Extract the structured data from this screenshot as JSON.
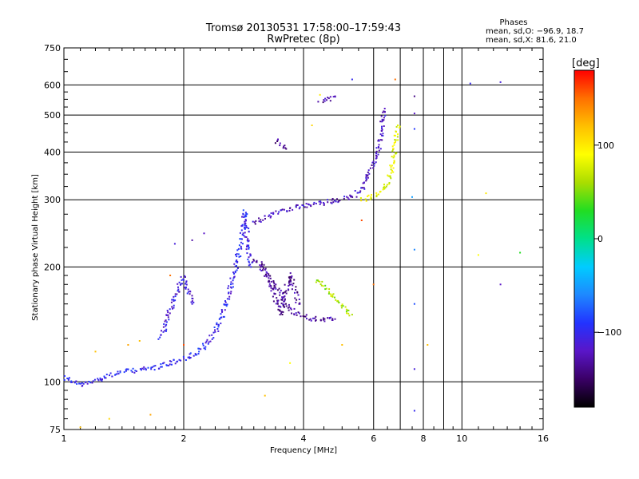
{
  "title_line1": "Tromsø 20130531 17:58:00–17:59:43",
  "title_line2": "RwPretec (8p)",
  "stats": {
    "header": "Phases",
    "line_o": "mean, sd,O: −96.9, 18.7",
    "line_x": "mean, sd,X:  81.6, 21.0"
  },
  "colorbar": {
    "title": "[deg]",
    "ticks": [
      {
        "value": 100,
        "label": "100"
      },
      {
        "value": 0,
        "label": "0"
      },
      {
        "value": -100,
        "label": "−100"
      }
    ],
    "range": [
      -180,
      180
    ],
    "colors": [
      "#000000",
      "#3a0066",
      "#5a16c8",
      "#2233ff",
      "#1e88ff",
      "#00ccff",
      "#00e08a",
      "#22dd22",
      "#aadd00",
      "#ffff00",
      "#ffc000",
      "#ff7000",
      "#ff0000"
    ]
  },
  "chart_data": {
    "type": "scatter",
    "xlabel": "Frequency [MHz]",
    "ylabel": "Stationary phase Virtual Height [km]",
    "xscale": "log",
    "yscale": "log",
    "xlim": [
      1,
      16
    ],
    "ylim": [
      75,
      750
    ],
    "xticks": [
      {
        "value": 1,
        "label": "1"
      },
      {
        "value": 2,
        "label": "2"
      },
      {
        "value": 4,
        "label": "4"
      },
      {
        "value": 6,
        "label": "6"
      },
      {
        "value": 8,
        "label": "8"
      },
      {
        "value": 10,
        "label": "10"
      },
      {
        "value": 16,
        "label": "16"
      }
    ],
    "xgrid": [
      2,
      4,
      6,
      7,
      8,
      9,
      10
    ],
    "yticks": [
      {
        "value": 75,
        "label": "75"
      },
      {
        "value": 100,
        "label": "100"
      },
      {
        "value": 200,
        "label": "200"
      },
      {
        "value": 300,
        "label": "300"
      },
      {
        "value": 400,
        "label": "400"
      },
      {
        "value": 500,
        "label": "500"
      },
      {
        "value": 600,
        "label": "600"
      },
      {
        "value": 750,
        "label": "750"
      }
    ],
    "ygrid": [
      100,
      200,
      300,
      400,
      500,
      600
    ],
    "grid": true,
    "traces": [
      {
        "phase": -100,
        "points": [
          [
            1.0,
            103
          ],
          [
            1.05,
            100
          ],
          [
            1.1,
            98
          ],
          [
            1.15,
            99
          ],
          [
            1.2,
            101
          ],
          [
            1.3,
            104
          ],
          [
            1.4,
            106
          ],
          [
            1.5,
            107
          ],
          [
            1.6,
            108
          ],
          [
            1.7,
            109
          ],
          [
            1.8,
            111
          ],
          [
            1.9,
            113
          ],
          [
            2.0,
            115
          ],
          [
            2.1,
            117
          ],
          [
            2.2,
            121
          ],
          [
            2.3,
            126
          ],
          [
            2.4,
            135
          ],
          [
            2.5,
            150
          ],
          [
            2.6,
            170
          ],
          [
            2.7,
            200
          ],
          [
            2.8,
            240
          ],
          [
            2.85,
            280
          ],
          [
            2.9,
            230
          ],
          [
            2.95,
            200
          ]
        ]
      },
      {
        "phase": -110,
        "points": [
          [
            1.75,
            130
          ],
          [
            1.8,
            140
          ],
          [
            1.85,
            155
          ],
          [
            1.9,
            168
          ],
          [
            1.95,
            178
          ],
          [
            2.0,
            188
          ],
          [
            2.05,
            175
          ],
          [
            2.1,
            160
          ]
        ]
      },
      {
        "phase": -120,
        "points": [
          [
            3.0,
            260
          ],
          [
            3.2,
            270
          ],
          [
            3.4,
            278
          ],
          [
            3.6,
            283
          ],
          [
            3.8,
            286
          ],
          [
            4.0,
            288
          ],
          [
            4.3,
            292
          ],
          [
            4.6,
            296
          ],
          [
            5.0,
            300
          ],
          [
            5.3,
            305
          ],
          [
            5.6,
            320
          ],
          [
            5.8,
            345
          ],
          [
            6.0,
            375
          ],
          [
            6.2,
            415
          ],
          [
            6.3,
            460
          ],
          [
            6.4,
            520
          ]
        ]
      },
      {
        "phase": -130,
        "points": [
          [
            3.1,
            200
          ],
          [
            3.3,
            185
          ],
          [
            3.5,
            170
          ],
          [
            3.6,
            160
          ],
          [
            3.8,
            152
          ],
          [
            4.0,
            148
          ],
          [
            4.3,
            146
          ],
          [
            4.6,
            145
          ],
          [
            4.8,
            146
          ]
        ]
      },
      {
        "phase": -135,
        "points": [
          [
            3.0,
            210
          ],
          [
            3.2,
            200
          ],
          [
            3.3,
            180
          ],
          [
            3.4,
            165
          ],
          [
            3.5,
            150
          ],
          [
            3.6,
            170
          ],
          [
            3.7,
            190
          ],
          [
            3.8,
            175
          ],
          [
            3.9,
            160
          ]
        ]
      },
      {
        "phase": 60,
        "points": [
          [
            4.3,
            185
          ],
          [
            4.5,
            178
          ],
          [
            4.7,
            170
          ],
          [
            4.9,
            162
          ],
          [
            5.1,
            155
          ],
          [
            5.3,
            150
          ]
        ]
      },
      {
        "phase": 80,
        "points": [
          [
            5.6,
            300
          ],
          [
            5.9,
            305
          ],
          [
            6.2,
            312
          ],
          [
            6.5,
            330
          ],
          [
            6.7,
            370
          ],
          [
            6.8,
            420
          ],
          [
            6.9,
            470
          ]
        ]
      },
      {
        "phase": -130,
        "points": [
          [
            4.4,
            540
          ],
          [
            4.6,
            550
          ],
          [
            4.8,
            560
          ]
        ]
      },
      {
        "phase": -140,
        "points": [
          [
            3.4,
            430
          ],
          [
            3.5,
            420
          ],
          [
            3.6,
            410
          ]
        ]
      }
    ],
    "scatter_points": [
      {
        "x": 5.3,
        "y": 620,
        "phase": -100
      },
      {
        "x": 6.8,
        "y": 620,
        "phase": 150
      },
      {
        "x": 10.5,
        "y": 605,
        "phase": -100
      },
      {
        "x": 12.5,
        "y": 610,
        "phase": -110
      },
      {
        "x": 7.6,
        "y": 560,
        "phase": -140
      },
      {
        "x": 7.6,
        "y": 505,
        "phase": -120
      },
      {
        "x": 7.6,
        "y": 460,
        "phase": -90
      },
      {
        "x": 4.4,
        "y": 565,
        "phase": 100
      },
      {
        "x": 7.5,
        "y": 305,
        "phase": -50
      },
      {
        "x": 7.6,
        "y": 222,
        "phase": -60
      },
      {
        "x": 7.6,
        "y": 160,
        "phase": -80
      },
      {
        "x": 7.6,
        "y": 108,
        "phase": -110
      },
      {
        "x": 7.6,
        "y": 84,
        "phase": -100
      },
      {
        "x": 11.5,
        "y": 312,
        "phase": 100
      },
      {
        "x": 11.0,
        "y": 215,
        "phase": 90
      },
      {
        "x": 14.0,
        "y": 218,
        "phase": 30
      },
      {
        "x": 12.5,
        "y": 180,
        "phase": -120
      },
      {
        "x": 1.9,
        "y": 230,
        "phase": -110
      },
      {
        "x": 2.1,
        "y": 235,
        "phase": -130
      },
      {
        "x": 2.25,
        "y": 245,
        "phase": -120
      },
      {
        "x": 1.85,
        "y": 190,
        "phase": 150
      },
      {
        "x": 1.55,
        "y": 128,
        "phase": 120
      },
      {
        "x": 1.45,
        "y": 125,
        "phase": 130
      },
      {
        "x": 1.2,
        "y": 120,
        "phase": 120
      },
      {
        "x": 1.3,
        "y": 80,
        "phase": 110
      },
      {
        "x": 1.65,
        "y": 82,
        "phase": 130
      },
      {
        "x": 1.1,
        "y": 76,
        "phase": 120
      },
      {
        "x": 2.0,
        "y": 125,
        "phase": 160
      },
      {
        "x": 3.2,
        "y": 92,
        "phase": 120
      },
      {
        "x": 3.7,
        "y": 112,
        "phase": 90
      },
      {
        "x": 6.0,
        "y": 180,
        "phase": 150
      },
      {
        "x": 5.0,
        "y": 125,
        "phase": 120
      },
      {
        "x": 8.2,
        "y": 125,
        "phase": 120
      },
      {
        "x": 5.6,
        "y": 265,
        "phase": 160
      },
      {
        "x": 4.2,
        "y": 470,
        "phase": 110
      }
    ]
  }
}
